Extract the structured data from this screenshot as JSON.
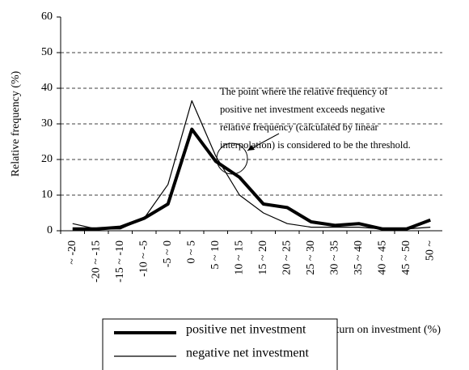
{
  "chart_data": {
    "type": "line",
    "y_label": "Relative frequency (%)",
    "x_label": "Return on investment (%)",
    "annotation": [
      "The point where the relative frequency of",
      "positive net investment exceeds negative",
      "relative frequency (calculated by linear",
      "interpolation) is considered to be the threshold."
    ],
    "categories": [
      "~ -20",
      "-20 ~ -15",
      "-15 ~ -10",
      "-10 ~ -5",
      "-5 ~ 0",
      "0 ~ 5",
      "5 ~ 10",
      "10 ~ 15",
      "15 ~ 20",
      "20 ~ 25",
      "25 ~ 30",
      "30 ~ 35",
      "35 ~ 40",
      "40 ~ 45",
      "45 ~ 50",
      "50 ~"
    ],
    "series": [
      {
        "name": "positive net investment",
        "color": "#000000",
        "width": 4,
        "values": [
          0.5,
          0.5,
          1,
          3.5,
          7.5,
          28.5,
          19.5,
          15,
          7.5,
          6.5,
          2.5,
          1.5,
          2,
          0.5,
          0.5,
          3
        ]
      },
      {
        "name": "negative net investment",
        "color": "#000000",
        "width": 1.2,
        "values": [
          2,
          0.5,
          0.5,
          3.5,
          13,
          36.5,
          21,
          10,
          5,
          2,
          1,
          1,
          1,
          0.5,
          0.5,
          1
        ]
      }
    ],
    "ylim": [
      0,
      60
    ],
    "yticks": [
      0,
      10,
      20,
      30,
      40,
      50,
      60
    ],
    "grid": true
  }
}
